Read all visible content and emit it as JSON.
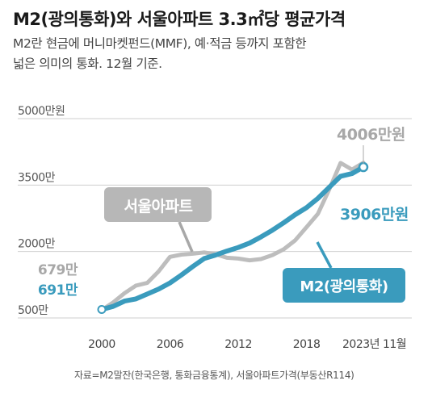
{
  "header": {
    "title": "M2(광의통화)와 서울아파트 3.3㎡당 평균가격",
    "subtitle_line1": "M2란 현금에 머니마켓펀드(MMF), 예·적금 등까지 포함한",
    "subtitle_line2": "넓은 의미의 통화. 12월 기준."
  },
  "source": "자료=M2말잔(한국은행, 통화금융통계), 서울아파트가격(부동산R114)",
  "chart_data": {
    "type": "line",
    "x_tick_labels": [
      "2000",
      "2006",
      "2012",
      "2018",
      "2023년 11월"
    ],
    "y_tick_labels": [
      "5000만원",
      "3500만",
      "2000만",
      "500만"
    ],
    "ylim": [
      500,
      5000
    ],
    "xlim": [
      2000,
      2023
    ],
    "grid": true,
    "colors": {
      "apartment": "#bdbdbd",
      "m2": "#3a9bbd"
    },
    "series": [
      {
        "name": "서울아파트",
        "x": [
          2000,
          2001,
          2002,
          2003,
          2004,
          2005,
          2006,
          2007,
          2008,
          2009,
          2010,
          2011,
          2012,
          2013,
          2014,
          2015,
          2016,
          2017,
          2018,
          2019,
          2020,
          2021,
          2022,
          2023
        ],
        "values": [
          679,
          850,
          1060,
          1230,
          1290,
          1550,
          1880,
          1930,
          1950,
          1980,
          1940,
          1860,
          1840,
          1800,
          1830,
          1920,
          2050,
          2250,
          2550,
          2850,
          3400,
          4000,
          3850,
          4006
        ],
        "end_label": "4006만원",
        "start_label": "679만"
      },
      {
        "name": "M2(광의통화)",
        "x": [
          2000,
          2001,
          2002,
          2003,
          2004,
          2005,
          2006,
          2007,
          2008,
          2009,
          2010,
          2011,
          2012,
          2013,
          2014,
          2015,
          2016,
          2017,
          2018,
          2019,
          2020,
          2021,
          2022,
          2023
        ],
        "values": [
          691,
          760,
          880,
          930,
          1040,
          1150,
          1290,
          1470,
          1660,
          1840,
          1920,
          2010,
          2090,
          2190,
          2330,
          2480,
          2650,
          2830,
          2990,
          3200,
          3450,
          3700,
          3760,
          3906
        ],
        "end_label": "3906만원",
        "start_label": "691만"
      }
    ]
  }
}
